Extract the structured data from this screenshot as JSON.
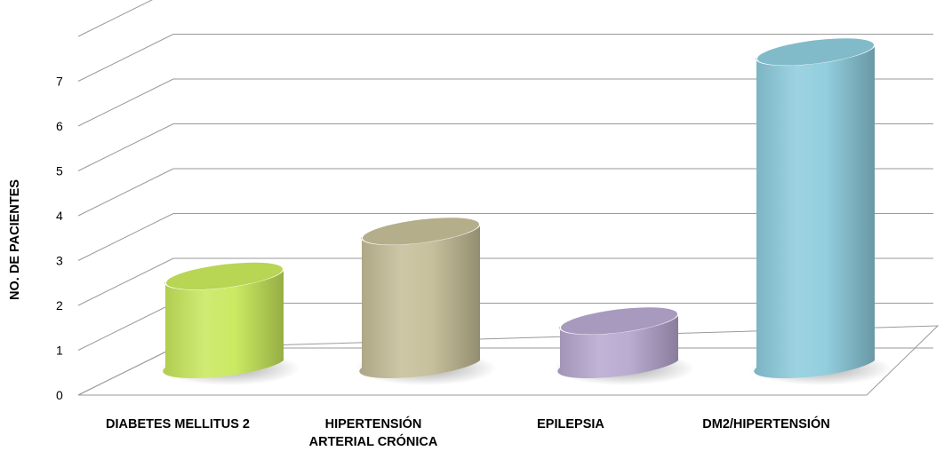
{
  "chart_data": {
    "type": "bar",
    "style": "3d-cylinder",
    "categories": [
      [
        "DIABETES MELLITUS 2"
      ],
      [
        "HIPERTENSIÓN",
        "ARTERIAL CRÓNICA"
      ],
      [
        "EPILEPSIA"
      ],
      [
        "DM2/HIPERTENSIÓN"
      ]
    ],
    "values": [
      2,
      3,
      1,
      7
    ],
    "colors": [
      "#c8e85a",
      "#c4bd97",
      "#b6a7cf",
      "#8ccbdc"
    ],
    "ylabel": "NO. DE PACIENTES",
    "xlabel": "",
    "ylim": [
      0,
      7
    ],
    "yticks": [
      0,
      1,
      2,
      3,
      4,
      5,
      6,
      7
    ],
    "grid": true,
    "legend": "none"
  }
}
